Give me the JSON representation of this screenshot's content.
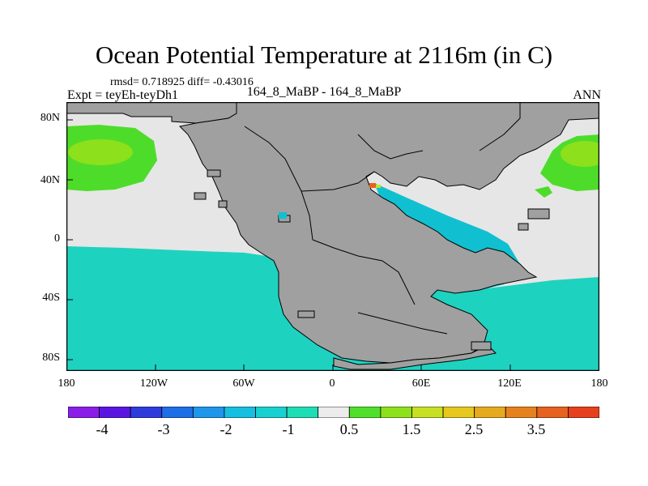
{
  "title": "Ocean Potential Temperature at 2116m (in C)",
  "stats": "rmsd= 0.718925  diff= -0.43016",
  "experiment": "Expt = teyEh-teyDh1",
  "comparison": "164_8_MaBP - 164_8_MaBP",
  "period": "ANN",
  "yticks": [
    "80N",
    "40N",
    "0",
    "40S",
    "80S"
  ],
  "xticks": [
    "180",
    "120W",
    "60W",
    "0",
    "60E",
    "120E",
    "180"
  ],
  "colorbar": {
    "colors": [
      "#8a1ee8",
      "#5a16e0",
      "#2e3cdc",
      "#1e6ee6",
      "#1e96ec",
      "#16bee0",
      "#18d0d0",
      "#1edcb4",
      "#ececec",
      "#50e02c",
      "#8ce01c",
      "#c8e024",
      "#e6c81e",
      "#e6aa1e",
      "#e6821e",
      "#e6621e",
      "#e6401e"
    ],
    "labels": [
      "-4",
      "-3",
      "-2",
      "-1",
      "0.5",
      "1.5",
      "2.5",
      "3.5"
    ]
  },
  "colors": {
    "land": "#a0a0a0",
    "nearzero": "#e6e6e6",
    "cool": "#1ed2c0",
    "cooler": "#10c0d0",
    "warm": "#4edc2a",
    "warmer": "#8ce01c"
  }
}
